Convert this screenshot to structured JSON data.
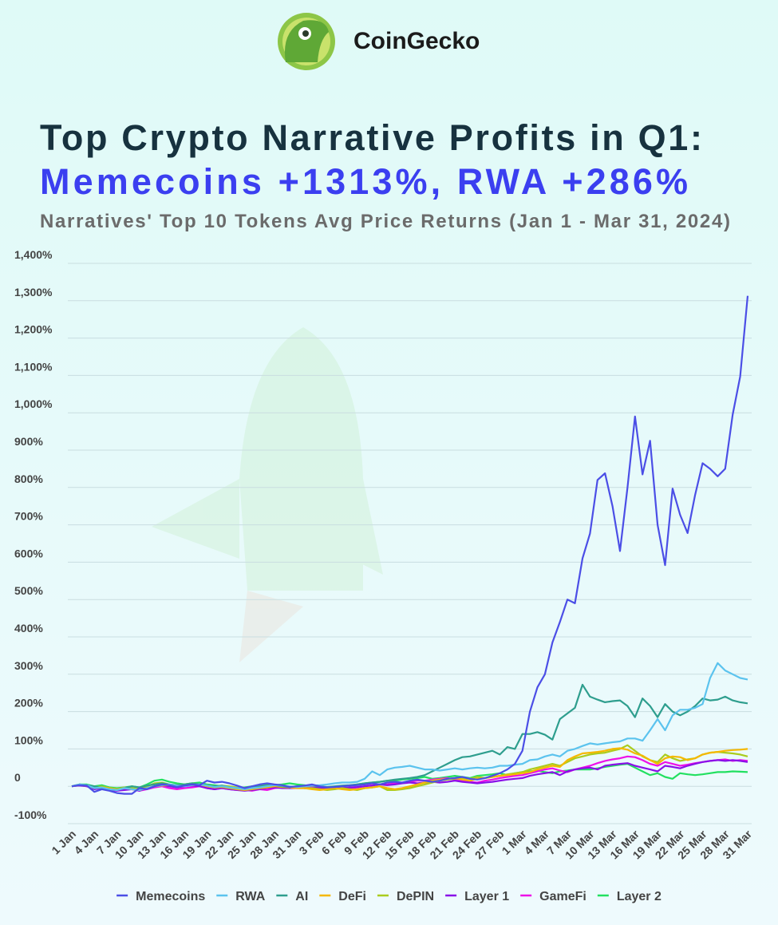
{
  "brand": "CoinGecko",
  "chart_data": {
    "type": "line",
    "title": "Top Crypto Narrative Profits in Q1:",
    "title_highlight": "Memecoins +1313%, RWA +286%",
    "subtitle": "Narratives' Top 10 Tokens Avg Price Returns (Jan 1 - Mar 31, 2024)",
    "categories": [
      "1 Jan",
      null,
      null,
      "4 Jan",
      null,
      null,
      "7 Jan",
      null,
      null,
      "10 Jan",
      null,
      null,
      "13 Jan",
      null,
      null,
      "16 Jan",
      null,
      null,
      "19 Jan",
      null,
      null,
      "22 Jan",
      null,
      null,
      "25 Jan",
      null,
      null,
      "28 Jan",
      null,
      null,
      "31 Jan",
      null,
      null,
      "3 Feb",
      null,
      null,
      "6 Feb",
      null,
      null,
      "9 Feb",
      null,
      null,
      "12 Feb",
      null,
      null,
      "15 Feb",
      null,
      null,
      "18 Feb",
      null,
      null,
      "21 Feb",
      null,
      null,
      "24 Feb",
      null,
      null,
      "27 Feb",
      null,
      null,
      "1 Mar",
      null,
      null,
      "4 Mar",
      null,
      null,
      "7 Mar",
      null,
      null,
      "10 Mar",
      null,
      null,
      "13 Mar",
      null,
      null,
      "16 Mar",
      null,
      null,
      "19 Mar",
      null,
      null,
      "22 Mar",
      null,
      null,
      "25 Mar",
      null,
      null,
      "28 Mar",
      null,
      null,
      "31 Mar"
    ],
    "series": [
      {
        "name": "Memecoins",
        "color": "#4b4ee6",
        "values": [
          0,
          3,
          2,
          -15,
          -8,
          -12,
          -18,
          -20,
          -20,
          -5,
          -8,
          0,
          5,
          3,
          -2,
          2,
          5,
          3,
          15,
          10,
          12,
          8,
          2,
          -5,
          0,
          5,
          8,
          5,
          3,
          -2,
          0,
          2,
          5,
          0,
          -3,
          -2,
          0,
          2,
          3,
          5,
          8,
          5,
          10,
          12,
          10,
          15,
          18,
          15,
          12,
          15,
          20,
          22,
          25,
          20,
          18,
          22,
          28,
          35,
          45,
          60,
          95,
          200,
          265,
          300,
          385,
          440,
          500,
          490,
          610,
          677,
          820,
          838,
          750,
          630,
          800,
          990,
          835,
          925,
          700,
          592,
          797,
          727,
          678,
          780,
          865,
          850,
          830,
          850,
          995,
          1097,
          1313
        ]
      },
      {
        "name": "RWA",
        "color": "#5bc3ee",
        "values": [
          0,
          5,
          3,
          -5,
          -3,
          -8,
          -10,
          -5,
          -8,
          -10,
          -5,
          0,
          3,
          5,
          2,
          0,
          3,
          5,
          2,
          -2,
          0,
          -3,
          -5,
          -8,
          -5,
          -3,
          0,
          3,
          2,
          0,
          -2,
          0,
          2,
          3,
          5,
          8,
          10,
          10,
          12,
          20,
          40,
          30,
          45,
          50,
          52,
          55,
          50,
          45,
          45,
          42,
          45,
          48,
          45,
          48,
          50,
          48,
          50,
          55,
          55,
          58,
          60,
          70,
          72,
          80,
          85,
          80,
          95,
          100,
          108,
          115,
          112,
          115,
          118,
          120,
          128,
          128,
          122,
          150,
          180,
          150,
          190,
          205,
          205,
          210,
          220,
          290,
          330,
          310,
          300,
          290,
          286
        ]
      },
      {
        "name": "AI",
        "color": "#2e9e8e",
        "values": [
          0,
          5,
          3,
          0,
          -5,
          -8,
          -10,
          -5,
          0,
          -3,
          2,
          5,
          8,
          5,
          3,
          5,
          8,
          5,
          3,
          0,
          2,
          -3,
          -5,
          -5,
          -3,
          0,
          2,
          3,
          0,
          -2,
          0,
          0,
          2,
          0,
          -2,
          0,
          2,
          3,
          5,
          8,
          10,
          12,
          15,
          18,
          20,
          22,
          25,
          30,
          40,
          50,
          60,
          70,
          78,
          80,
          85,
          90,
          95,
          85,
          105,
          100,
          140,
          140,
          145,
          138,
          125,
          180,
          195,
          210,
          272,
          240,
          232,
          225,
          228,
          230,
          215,
          185,
          235,
          215,
          185,
          220,
          200,
          190,
          200,
          215,
          235,
          230,
          232,
          240,
          230,
          225,
          222
        ]
      },
      {
        "name": "DeFi",
        "color": "#f5b800",
        "values": [
          0,
          3,
          2,
          -5,
          -3,
          -5,
          -8,
          -5,
          -8,
          -10,
          -5,
          0,
          2,
          3,
          0,
          2,
          3,
          5,
          0,
          -3,
          -2,
          -5,
          -8,
          -10,
          -8,
          -5,
          -3,
          0,
          -2,
          -3,
          -5,
          -5,
          -8,
          -10,
          -8,
          -5,
          -8,
          -10,
          -8,
          -5,
          -3,
          0,
          -5,
          -8,
          -5,
          0,
          5,
          10,
          15,
          18,
          20,
          22,
          18,
          15,
          20,
          22,
          25,
          28,
          30,
          32,
          35,
          38,
          45,
          50,
          55,
          52,
          70,
          80,
          88,
          90,
          92,
          95,
          100,
          102,
          98,
          88,
          82,
          70,
          60,
          75,
          80,
          78,
          70,
          75,
          85,
          90,
          92,
          95,
          97,
          98,
          100
        ]
      },
      {
        "name": "DePIN",
        "color": "#aacc1e",
        "values": [
          0,
          5,
          3,
          -3,
          0,
          -5,
          -8,
          -3,
          -5,
          -8,
          0,
          8,
          10,
          5,
          3,
          5,
          8,
          5,
          3,
          0,
          2,
          0,
          -3,
          -5,
          -3,
          0,
          2,
          3,
          0,
          -2,
          -3,
          -5,
          -5,
          -8,
          -10,
          -8,
          -5,
          -8,
          -10,
          -5,
          -3,
          0,
          -10,
          -10,
          -8,
          -5,
          0,
          5,
          10,
          15,
          18,
          20,
          22,
          20,
          25,
          22,
          25,
          28,
          32,
          35,
          38,
          45,
          50,
          55,
          60,
          55,
          65,
          75,
          80,
          85,
          88,
          90,
          95,
          100,
          110,
          95,
          80,
          70,
          65,
          85,
          75,
          68,
          72,
          75,
          85,
          90,
          92,
          90,
          88,
          85,
          80
        ]
      },
      {
        "name": "Layer 1",
        "color": "#8a10e8",
        "values": [
          0,
          2,
          0,
          -8,
          -5,
          -10,
          -12,
          -10,
          -8,
          -12,
          -5,
          0,
          3,
          0,
          -3,
          0,
          2,
          0,
          -5,
          -8,
          -5,
          -8,
          -10,
          -12,
          -10,
          -8,
          -5,
          -3,
          -5,
          -5,
          -3,
          -5,
          -5,
          -3,
          -5,
          -3,
          -5,
          -3,
          -2,
          0,
          2,
          5,
          3,
          5,
          8,
          10,
          8,
          10,
          12,
          10,
          12,
          15,
          12,
          10,
          8,
          10,
          12,
          15,
          18,
          20,
          22,
          28,
          32,
          35,
          38,
          30,
          40,
          45,
          48,
          50,
          45,
          55,
          58,
          60,
          62,
          55,
          50,
          45,
          40,
          55,
          52,
          48,
          55,
          60,
          65,
          68,
          70,
          68,
          70,
          68,
          65
        ]
      },
      {
        "name": "GameFi",
        "color": "#ee10e8",
        "values": [
          0,
          3,
          0,
          -5,
          -3,
          -8,
          -10,
          -5,
          -8,
          -12,
          -8,
          -3,
          0,
          -5,
          -8,
          -5,
          -3,
          0,
          -5,
          -8,
          -5,
          -8,
          -10,
          -10,
          -12,
          -8,
          -10,
          -5,
          -3,
          -5,
          -5,
          -5,
          -3,
          -5,
          -8,
          -5,
          -3,
          -5,
          -3,
          0,
          3,
          5,
          5,
          8,
          10,
          12,
          15,
          15,
          18,
          20,
          22,
          18,
          15,
          12,
          10,
          15,
          18,
          22,
          25,
          28,
          30,
          35,
          40,
          45,
          48,
          42,
          38,
          45,
          50,
          55,
          62,
          68,
          72,
          75,
          80,
          78,
          70,
          60,
          55,
          65,
          60,
          55,
          58,
          62,
          65,
          68,
          70,
          72,
          68,
          70,
          68
        ]
      },
      {
        "name": "Layer 2",
        "color": "#22e060",
        "values": [
          0,
          5,
          5,
          0,
          3,
          -3,
          -5,
          -3,
          0,
          -3,
          5,
          15,
          18,
          12,
          8,
          5,
          8,
          10,
          5,
          3,
          0,
          -2,
          -5,
          -3,
          0,
          2,
          5,
          3,
          5,
          8,
          5,
          3,
          0,
          -3,
          -5,
          -3,
          0,
          2,
          5,
          8,
          10,
          12,
          15,
          15,
          18,
          20,
          22,
          25,
          20,
          22,
          25,
          28,
          25,
          22,
          28,
          30,
          32,
          35,
          30,
          35,
          38,
          40,
          42,
          38,
          35,
          40,
          42,
          45,
          45,
          45,
          48,
          52,
          55,
          58,
          60,
          50,
          40,
          30,
          35,
          25,
          20,
          35,
          32,
          30,
          32,
          35,
          38,
          38,
          40,
          39,
          38
        ]
      }
    ],
    "ylim": [
      -100,
      1400
    ],
    "yticks": [
      {
        "value": -100,
        "label": "-100%"
      },
      0,
      {
        "value": 100,
        "label": "100%"
      },
      {
        "value": 200,
        "label": "200%"
      },
      {
        "value": 300,
        "label": "300%"
      },
      {
        "value": 400,
        "label": "400%"
      },
      {
        "value": 500,
        "label": "500%"
      },
      {
        "value": 600,
        "label": "600%"
      },
      {
        "value": 700,
        "label": "700%"
      },
      {
        "value": 800,
        "label": "800%"
      },
      {
        "value": 900,
        "label": "900%"
      },
      {
        "value": 1000,
        "label": "1,000%"
      },
      {
        "value": 1100,
        "label": "1,100%"
      },
      {
        "value": 1200,
        "label": "1,200%"
      },
      {
        "value": 1300,
        "label": "1,300%"
      },
      {
        "value": 1400,
        "label": "1,400%"
      }
    ],
    "grid": true,
    "legend": "bottom"
  }
}
